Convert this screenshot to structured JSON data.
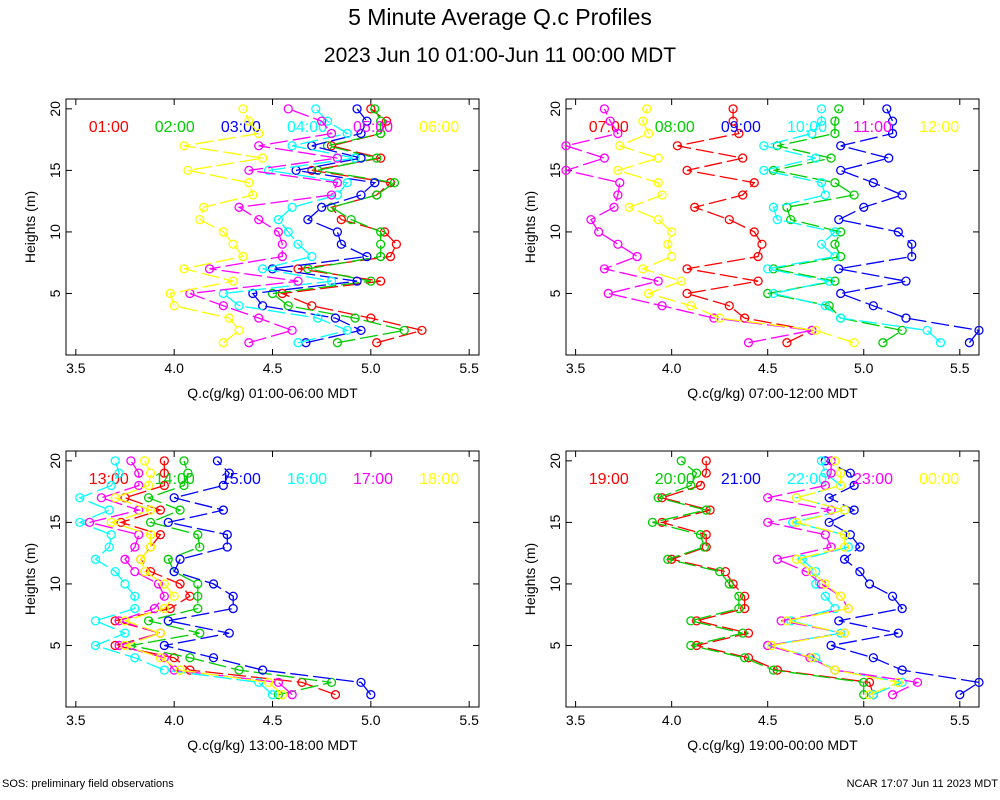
{
  "page": {
    "title": "5 Minute Average Q.c Profiles",
    "subtitle": "2023 Jun 10 01:00-Jun 11 00:00 MDT",
    "footer_left": "SOS: preliminary field observations",
    "footer_right": "NCAR 17:07 Jun 11 2023 MDT"
  },
  "chart_data": [
    {
      "type": "line",
      "xlabel": "Q.c(g/kg) 01:00-06:00 MDT",
      "ylabel": "Heights (m)",
      "xlim": [
        3.45,
        5.55
      ],
      "ylim": [
        0,
        20.8
      ],
      "xticks": [
        "3.5",
        "4.0",
        "4.5",
        "5.0",
        "5.5"
      ],
      "yticks": [
        "5",
        "10",
        "15",
        "20"
      ],
      "heights": [
        1,
        2,
        3,
        4,
        5,
        6,
        7,
        8,
        9,
        10,
        11,
        12,
        13,
        14,
        15,
        16,
        17,
        18,
        19,
        20
      ],
      "series": [
        {
          "name": "01:00",
          "color": "#ff0000",
          "values": [
            5.03,
            5.26,
            5.0,
            4.7,
            4.55,
            5.05,
            4.63,
            5.1,
            5.13,
            5.07,
            4.85,
            4.8,
            5.03,
            5.1,
            4.7,
            5.05,
            4.8,
            5.05,
            5.08,
            5.0
          ]
        },
        {
          "name": "02:00",
          "color": "#00cc00",
          "values": [
            4.83,
            5.17,
            4.92,
            4.58,
            4.5,
            5.0,
            4.68,
            5.05,
            5.05,
            5.05,
            4.9,
            4.8,
            5.03,
            5.12,
            4.73,
            5.03,
            4.78,
            5.05,
            5.05,
            5.02
          ]
        },
        {
          "name": "03:00",
          "color": "#0000ff",
          "values": [
            4.67,
            4.95,
            4.82,
            4.45,
            4.4,
            4.93,
            4.5,
            4.98,
            4.85,
            4.83,
            4.68,
            4.75,
            4.95,
            5.02,
            4.62,
            4.95,
            4.7,
            4.95,
            4.98,
            4.93
          ]
        },
        {
          "name": "04:00",
          "color": "#00ffff",
          "values": [
            4.63,
            4.88,
            4.73,
            4.33,
            4.25,
            4.8,
            4.45,
            4.7,
            4.63,
            4.58,
            4.53,
            4.6,
            4.83,
            4.88,
            4.48,
            4.92,
            4.6,
            4.88,
            4.78,
            4.72
          ]
        },
        {
          "name": "05:00",
          "color": "#ff00ff",
          "values": [
            4.38,
            4.6,
            4.43,
            4.25,
            4.08,
            4.63,
            4.18,
            4.55,
            4.55,
            4.53,
            4.43,
            4.33,
            4.8,
            4.83,
            4.38,
            4.83,
            4.43,
            4.8,
            4.75,
            4.58
          ]
        },
        {
          "name": "06:00",
          "color": "#ffff00",
          "values": [
            4.25,
            4.33,
            4.28,
            4.0,
            3.98,
            4.3,
            4.05,
            4.35,
            4.3,
            4.25,
            4.13,
            4.15,
            4.4,
            4.38,
            4.07,
            4.45,
            4.05,
            4.43,
            4.38,
            4.35
          ]
        }
      ]
    },
    {
      "type": "line",
      "xlabel": "Q.c(g/kg) 07:00-12:00 MDT",
      "ylabel": "Heights (m)",
      "xlim": [
        3.45,
        5.6
      ],
      "ylim": [
        0,
        20.8
      ],
      "xticks": [
        "3.5",
        "4.0",
        "4.5",
        "5.0",
        "5.5"
      ],
      "yticks": [
        "5",
        "10",
        "15",
        "20"
      ],
      "heights": [
        1,
        2,
        3,
        4,
        5,
        6,
        7,
        8,
        9,
        10,
        11,
        12,
        13,
        14,
        15,
        16,
        17,
        18,
        19,
        20
      ],
      "series": [
        {
          "name": "07:00",
          "color": "#ff0000",
          "values": [
            4.6,
            4.73,
            4.38,
            4.3,
            4.08,
            4.45,
            4.08,
            4.45,
            4.47,
            4.43,
            4.3,
            4.12,
            4.37,
            4.43,
            4.08,
            4.37,
            4.03,
            4.35,
            4.32,
            4.32
          ]
        },
        {
          "name": "08:00",
          "color": "#00cc00",
          "values": [
            5.1,
            5.2,
            4.88,
            4.82,
            4.5,
            4.85,
            4.53,
            4.88,
            4.85,
            4.88,
            4.62,
            4.6,
            4.95,
            4.85,
            4.53,
            4.83,
            4.55,
            4.85,
            4.85,
            4.87
          ]
        },
        {
          "name": "09:00",
          "color": "#0000ff",
          "values": [
            5.55,
            5.6,
            5.22,
            5.05,
            4.88,
            5.22,
            4.87,
            5.25,
            5.25,
            5.18,
            4.87,
            5.0,
            5.2,
            5.05,
            4.88,
            5.13,
            4.88,
            5.15,
            5.15,
            5.12
          ]
        },
        {
          "name": "10:00",
          "color": "#00ffff",
          "values": [
            5.4,
            5.33,
            4.88,
            4.8,
            4.53,
            4.82,
            4.5,
            4.85,
            4.78,
            4.85,
            4.55,
            4.53,
            4.8,
            4.78,
            4.48,
            4.75,
            4.48,
            4.73,
            4.78,
            4.78
          ]
        },
        {
          "name": "11:00",
          "color": "#ff00ff",
          "values": [
            4.4,
            4.73,
            4.22,
            3.95,
            3.67,
            3.93,
            3.65,
            3.82,
            3.72,
            3.62,
            3.58,
            3.7,
            3.72,
            3.73,
            3.45,
            3.65,
            3.45,
            3.72,
            3.68,
            3.65
          ]
        },
        {
          "name": "12:00",
          "color": "#ffff00",
          "values": [
            4.95,
            4.75,
            4.25,
            4.1,
            3.88,
            4.05,
            3.85,
            4.0,
            3.98,
            4.0,
            3.93,
            3.78,
            3.95,
            3.93,
            3.72,
            3.93,
            3.73,
            3.88,
            3.85,
            3.87
          ]
        }
      ]
    },
    {
      "type": "line",
      "xlabel": "Q.c(g/kg) 13:00-18:00 MDT",
      "ylabel": "Heights (m)",
      "xlim": [
        3.45,
        5.55
      ],
      "ylim": [
        0,
        20.8
      ],
      "xticks": [
        "3.5",
        "4.0",
        "4.5",
        "5.0",
        "5.5"
      ],
      "yticks": [
        "5",
        "10",
        "15",
        "20"
      ],
      "heights": [
        1,
        2,
        3,
        4,
        5,
        6,
        7,
        8,
        9,
        10,
        11,
        12,
        13,
        14,
        15,
        16,
        17,
        18,
        19,
        20
      ],
      "series": [
        {
          "name": "13:00",
          "color": "#ff0000",
          "values": [
            4.82,
            4.65,
            4.08,
            4.0,
            3.7,
            3.93,
            3.7,
            3.98,
            4.08,
            4.03,
            3.88,
            3.83,
            3.88,
            3.93,
            3.73,
            3.93,
            3.75,
            3.95,
            3.95,
            3.95
          ]
        },
        {
          "name": "14:00",
          "color": "#00cc00",
          "values": [
            4.53,
            4.8,
            4.33,
            4.08,
            3.78,
            4.13,
            3.87,
            4.12,
            4.12,
            4.12,
            4.0,
            3.97,
            4.13,
            4.12,
            3.88,
            4.03,
            3.87,
            4.05,
            4.07,
            4.05
          ]
        },
        {
          "name": "15:00",
          "color": "#0000ff",
          "values": [
            5.0,
            4.95,
            4.45,
            4.2,
            3.95,
            4.28,
            3.97,
            4.3,
            4.3,
            4.2,
            4.0,
            4.03,
            4.27,
            4.27,
            3.97,
            4.25,
            4.0,
            4.25,
            4.28,
            4.22
          ]
        },
        {
          "name": "16:00",
          "color": "#00ffff",
          "values": [
            4.5,
            4.43,
            3.95,
            3.8,
            3.6,
            3.75,
            3.6,
            3.8,
            3.8,
            3.75,
            3.7,
            3.6,
            3.67,
            3.68,
            3.52,
            3.67,
            3.52,
            3.68,
            3.72,
            3.7
          ]
        },
        {
          "name": "17:00",
          "color": "#ff00ff",
          "values": [
            4.6,
            4.53,
            4.0,
            3.95,
            3.72,
            3.93,
            3.72,
            3.9,
            3.95,
            3.92,
            3.8,
            3.75,
            3.8,
            3.82,
            3.57,
            3.82,
            3.63,
            3.82,
            3.82,
            3.78
          ]
        },
        {
          "name": "18:00",
          "color": "#ffff00",
          "values": [
            4.55,
            4.48,
            4.03,
            3.93,
            3.75,
            3.93,
            3.75,
            3.95,
            4.0,
            3.95,
            3.85,
            3.83,
            3.88,
            3.88,
            3.68,
            3.88,
            3.7,
            3.87,
            3.88,
            3.85
          ]
        }
      ]
    },
    {
      "type": "line",
      "xlabel": "Q.c(g/kg) 19:00-00:00 MDT",
      "ylabel": "Heights (m)",
      "xlim": [
        3.45,
        5.6
      ],
      "ylim": [
        0,
        20.8
      ],
      "xticks": [
        "3.5",
        "4.0",
        "4.5",
        "5.0",
        "5.5"
      ],
      "yticks": [
        "5",
        "10",
        "15",
        "20"
      ],
      "heights": [
        1,
        2,
        3,
        4,
        5,
        6,
        7,
        8,
        9,
        10,
        11,
        12,
        13,
        14,
        15,
        16,
        17,
        18,
        19,
        20
      ],
      "series": [
        {
          "name": "19:00",
          "color": "#ff0000",
          "values": [
            5.05,
            5.03,
            4.55,
            4.4,
            4.13,
            4.4,
            4.13,
            4.38,
            4.38,
            4.32,
            4.28,
            4.0,
            4.18,
            4.18,
            3.95,
            4.2,
            3.95,
            4.15,
            4.18,
            4.18
          ]
        },
        {
          "name": "20:00",
          "color": "#00cc00",
          "values": [
            5.0,
            5.0,
            4.53,
            4.38,
            4.1,
            4.37,
            4.1,
            4.35,
            4.35,
            4.3,
            4.25,
            3.98,
            4.17,
            4.15,
            3.9,
            4.18,
            3.93,
            4.1,
            4.13,
            4.05
          ]
        },
        {
          "name": "21:00",
          "color": "#0000ff",
          "values": [
            5.5,
            5.6,
            5.2,
            5.05,
            4.83,
            5.18,
            4.87,
            5.2,
            5.15,
            5.03,
            4.98,
            4.9,
            4.98,
            4.93,
            4.82,
            4.95,
            4.82,
            4.95,
            4.93,
            4.8
          ]
        },
        {
          "name": "22:00",
          "color": "#00ffff",
          "values": [
            5.05,
            5.2,
            4.85,
            4.75,
            4.5,
            4.88,
            4.62,
            4.85,
            4.8,
            4.75,
            4.75,
            4.68,
            4.92,
            4.9,
            4.63,
            4.9,
            4.65,
            4.88,
            4.8,
            4.78
          ]
        },
        {
          "name": "23:00",
          "color": "#ff00ff",
          "values": [
            5.15,
            5.28,
            4.85,
            4.72,
            4.5,
            4.9,
            4.57,
            4.92,
            4.88,
            4.78,
            4.7,
            4.55,
            4.83,
            4.8,
            4.5,
            4.83,
            4.5,
            4.8,
            4.83,
            4.83
          ]
        },
        {
          "name": "00:00",
          "color": "#ffff00",
          "values": [
            5.03,
            5.18,
            4.85,
            4.73,
            4.52,
            4.9,
            4.6,
            4.92,
            4.88,
            4.8,
            4.73,
            4.65,
            4.9,
            4.9,
            4.65,
            4.9,
            4.65,
            4.88,
            4.88,
            4.85
          ]
        }
      ]
    }
  ]
}
